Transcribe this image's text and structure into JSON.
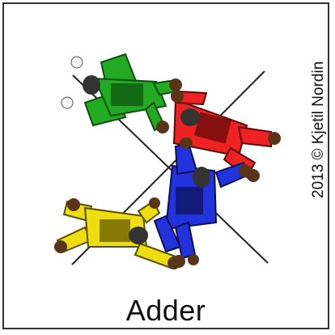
{
  "title": "Adder",
  "credit": "2013 © Kjetil Nordin",
  "jumpers": [
    {
      "name": "green",
      "color": "#22aa22",
      "dark": "#0e4e0e"
    },
    {
      "name": "red",
      "color": "#ee2222",
      "dark": "#5a0808"
    },
    {
      "name": "blue",
      "color": "#2233dd",
      "dark": "#0b1050"
    },
    {
      "name": "yellow",
      "color": "#eedd11",
      "dark": "#5a5000"
    }
  ],
  "colors": {
    "border": "#333333",
    "lines": "#222222",
    "skin": "#5a3418",
    "helmet": "#333333",
    "glove": "#f2f2f2"
  }
}
